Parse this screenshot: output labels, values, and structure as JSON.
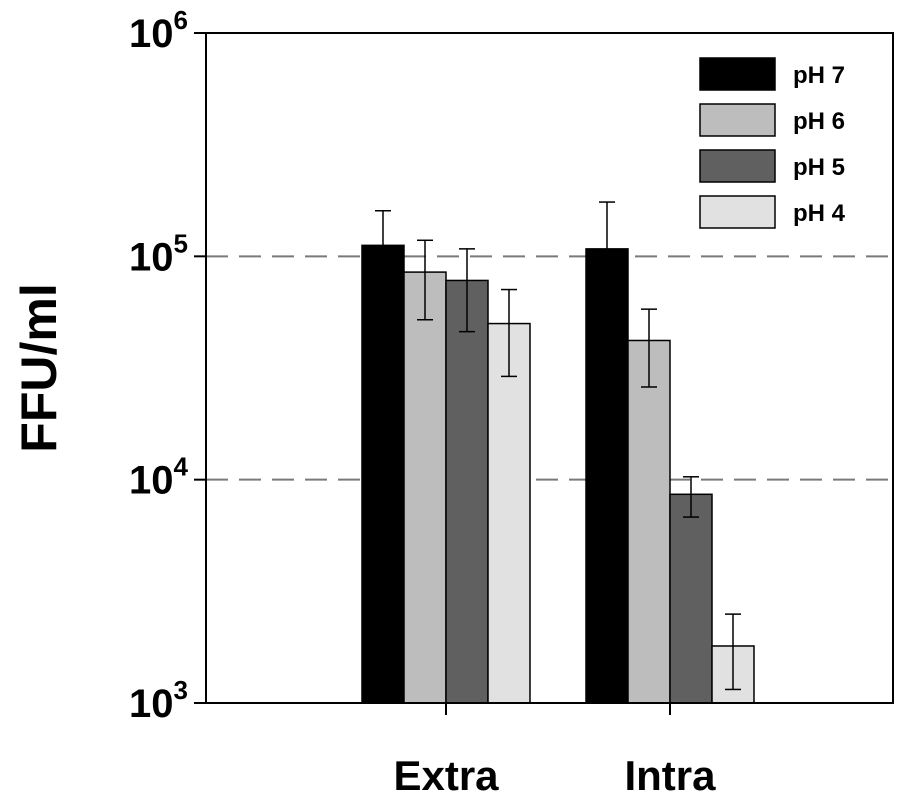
{
  "chart_data": {
    "type": "bar",
    "ylabel": "FFU/ml",
    "xlabel": "",
    "yscale": "log",
    "ylim": [
      1000,
      1000000
    ],
    "yticks": [
      {
        "value": 1000,
        "base": "10",
        "exp": "3"
      },
      {
        "value": 10000,
        "base": "10",
        "exp": "4"
      },
      {
        "value": 100000,
        "base": "10",
        "exp": "5"
      },
      {
        "value": 1000000,
        "base": "10",
        "exp": "6"
      }
    ],
    "gridlines_dashed": [
      10000,
      100000
    ],
    "categories": [
      "Extra",
      "Intra"
    ],
    "legend_position": "top-right",
    "series": [
      {
        "name": "pH 7",
        "color": "#000000",
        "values": [
          112000,
          108000
        ],
        "err_low": [
          85000,
          72000
        ],
        "err_high": [
          160000,
          175000
        ]
      },
      {
        "name": "pH 6",
        "color": "#bdbdbd",
        "values": [
          85000,
          42000
        ],
        "err_low": [
          52000,
          26000
        ],
        "err_high": [
          118000,
          58000
        ]
      },
      {
        "name": "pH 5",
        "color": "#606060",
        "values": [
          78000,
          8600
        ],
        "err_low": [
          46000,
          6800
        ],
        "err_high": [
          108000,
          10300
        ]
      },
      {
        "name": "pH 4",
        "color": "#e1e1e1",
        "values": [
          50000,
          1800
        ],
        "err_low": [
          29000,
          1150
        ],
        "err_high": [
          71000,
          2500
        ]
      }
    ]
  }
}
